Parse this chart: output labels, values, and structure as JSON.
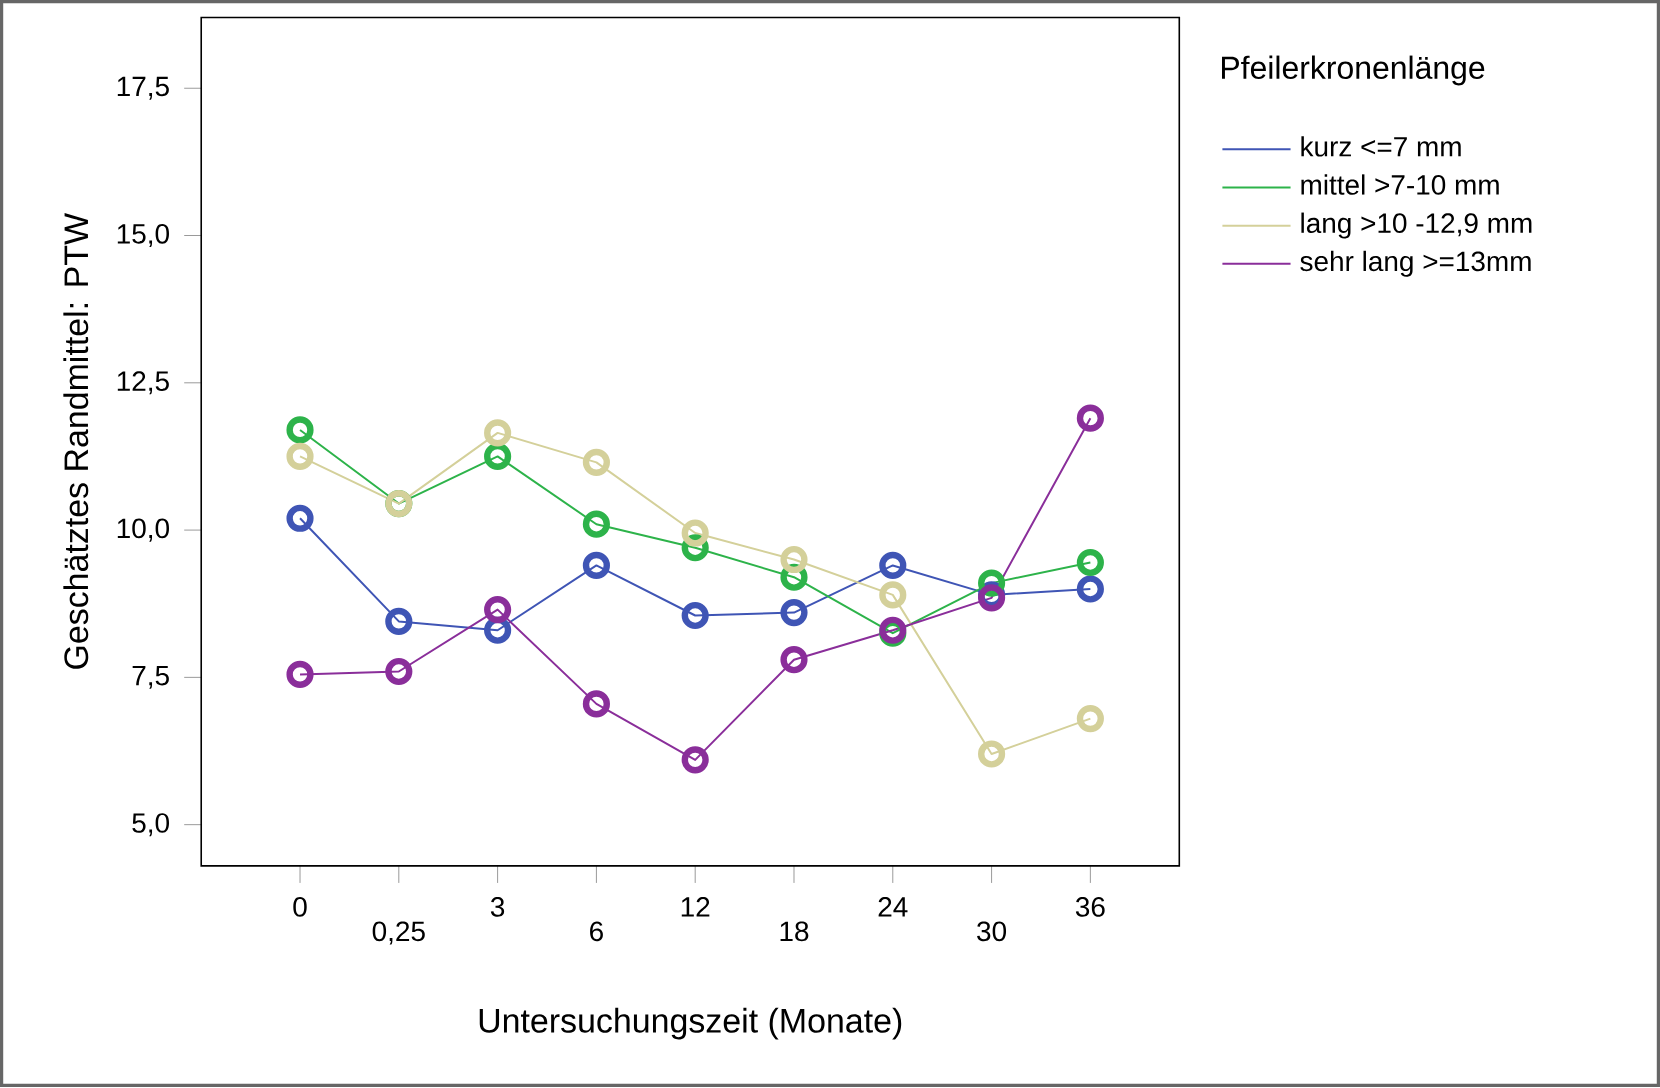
{
  "chart_data": {
    "type": "line",
    "xlabel": "Untersuchungszeit (Monate)",
    "ylabel": "Geschätztes Randmittel: PTW",
    "legend_title": "Pfeilerkronenlänge",
    "categories": [
      "0",
      "0,25",
      "3",
      "6",
      "12",
      "18",
      "24",
      "30",
      "36"
    ],
    "series": [
      {
        "name": "kurz <=7 mm",
        "color": "#3f55b5",
        "values": [
          10.2,
          8.45,
          8.3,
          9.4,
          8.55,
          8.6,
          9.4,
          8.9,
          9.0
        ]
      },
      {
        "name": "mittel >7-10 mm",
        "color": "#2db34a",
        "values": [
          11.7,
          10.45,
          11.25,
          10.1,
          9.7,
          9.2,
          8.25,
          9.1,
          9.45
        ]
      },
      {
        "name": "lang >10 -12,9 mm",
        "color": "#d4d09a",
        "values": [
          11.25,
          10.45,
          11.65,
          11.15,
          9.95,
          9.5,
          8.9,
          6.2,
          6.8
        ]
      },
      {
        "name": "sehr lang >=13mm",
        "color": "#8a2e9a",
        "values": [
          7.55,
          7.6,
          8.65,
          7.05,
          6.1,
          7.8,
          8.3,
          8.85,
          11.9
        ]
      }
    ],
    "ylim": [
      4.3,
      18.7
    ],
    "yticks": [
      {
        "value": 5,
        "label": "5,0"
      },
      {
        "value": 7.5,
        "label": "7,5"
      },
      {
        "value": 10,
        "label": "10,0"
      },
      {
        "value": 12.5,
        "label": "12,5"
      },
      {
        "value": 15,
        "label": "15,0"
      },
      {
        "value": 17.5,
        "label": "17,5"
      }
    ],
    "grid": false,
    "legend": "top right",
    "marker": "circle",
    "line_style": "solid"
  }
}
